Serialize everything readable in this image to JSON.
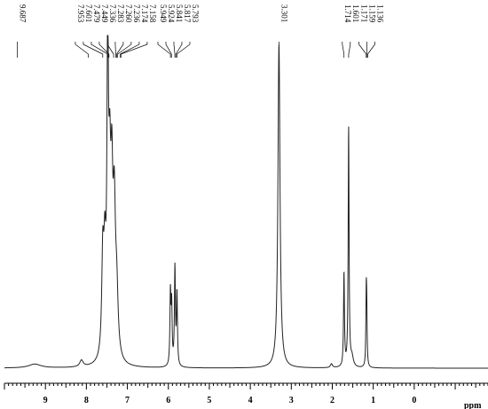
{
  "chart_data": {
    "type": "line",
    "title": "",
    "xlabel": "ppm",
    "ylabel": "",
    "xlim": [
      10.0,
      -1.8
    ],
    "x_reversed": true,
    "ylim": [
      0,
      1.0
    ],
    "grid": false,
    "legend": "none",
    "line_color": "#222222",
    "x_ticks": [
      "9",
      "8",
      "7",
      "6",
      "5",
      "4",
      "3",
      "2",
      "1",
      "0"
    ],
    "peak_labels": [
      "9.687",
      "7.953",
      "7.601",
      "7.479",
      "7.449",
      "7.336",
      "7.283",
      "7.260",
      "7.236",
      "7.174",
      "7.158",
      "5.949",
      "5.924",
      "5.841",
      "5.817",
      "5.793",
      "3.301",
      "1.714",
      "1.601",
      "1.171",
      "1.159",
      "1.136"
    ],
    "series": [
      {
        "peaks": [
          {
            "ppm": 9.26,
            "height": 0.012,
            "width": 0.18
          },
          {
            "ppm": 8.12,
            "height": 0.02,
            "width": 0.05
          },
          {
            "ppm": 7.6,
            "height": 0.3,
            "width": 0.03
          },
          {
            "ppm": 7.55,
            "height": 0.27,
            "width": 0.03
          },
          {
            "ppm": 7.48,
            "height": 0.92,
            "width": 0.022
          },
          {
            "ppm": 7.43,
            "height": 0.46,
            "width": 0.03
          },
          {
            "ppm": 7.38,
            "height": 0.45,
            "width": 0.03
          },
          {
            "ppm": 7.32,
            "height": 0.42,
            "width": 0.035
          },
          {
            "ppm": 7.26,
            "height": 0.18,
            "width": 0.04
          },
          {
            "ppm": 5.95,
            "height": 0.22,
            "width": 0.014
          },
          {
            "ppm": 5.92,
            "height": 0.18,
            "width": 0.014
          },
          {
            "ppm": 5.84,
            "height": 0.3,
            "width": 0.014
          },
          {
            "ppm": 5.79,
            "height": 0.22,
            "width": 0.014
          },
          {
            "ppm": 3.301,
            "height": 1.0,
            "width": 0.03
          },
          {
            "ppm": 2.02,
            "height": 0.012,
            "width": 0.03
          },
          {
            "ppm": 1.714,
            "height": 0.29,
            "width": 0.013
          },
          {
            "ppm": 1.601,
            "height": 0.74,
            "width": 0.013
          },
          {
            "ppm": 1.52,
            "height": 0.03,
            "width": 0.04
          },
          {
            "ppm": 1.171,
            "height": 0.21,
            "width": 0.011
          },
          {
            "ppm": 1.159,
            "height": 0.14,
            "width": 0.011
          }
        ]
      }
    ]
  }
}
